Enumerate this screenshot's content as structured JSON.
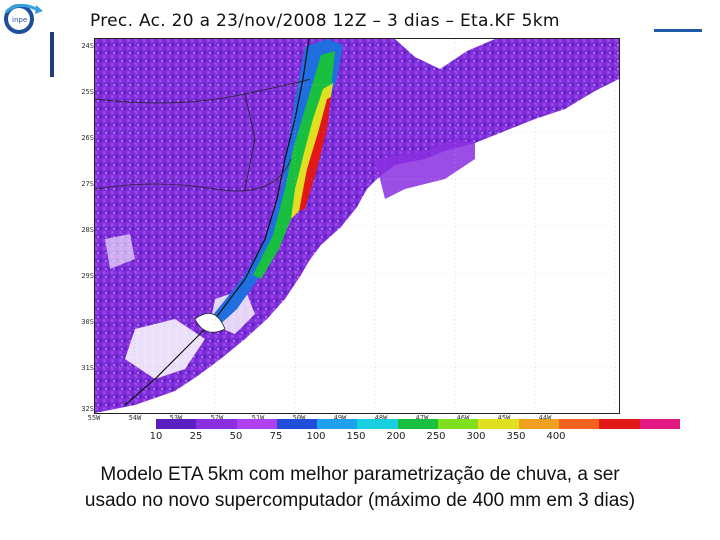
{
  "map": {
    "title": "Prec. Ac. 20 a 23/nov/2008 12Z – 3 dias – Eta.KF 5km",
    "lat_labels": [
      "24S",
      "25S",
      "26S",
      "27S",
      "28S",
      "29S",
      "30S",
      "31S",
      "32S"
    ],
    "lon_labels": [
      "55W",
      "54W",
      "53W",
      "52W",
      "51W",
      "50W",
      "49W",
      "48W",
      "47W",
      "46W",
      "45W",
      "44W"
    ],
    "colorbar": {
      "colors": [
        "#5a1fbf",
        "#8a2fe0",
        "#b040f0",
        "#1f4fd8",
        "#1fa0f0",
        "#19d0e0",
        "#19c040",
        "#7fe020",
        "#e0e020",
        "#f0a020",
        "#f06020",
        "#e01818",
        "#e01880"
      ],
      "ticks": [
        "10",
        "25",
        "50",
        "75",
        "100",
        "150",
        "200",
        "250",
        "300",
        "350",
        "400"
      ]
    }
  },
  "caption": {
    "line1": "Modelo ETA 5km com melhor parametrização de chuva,  a ser",
    "line2": "usado no novo supercomputador (máximo de 400 mm em 3 dias)"
  }
}
